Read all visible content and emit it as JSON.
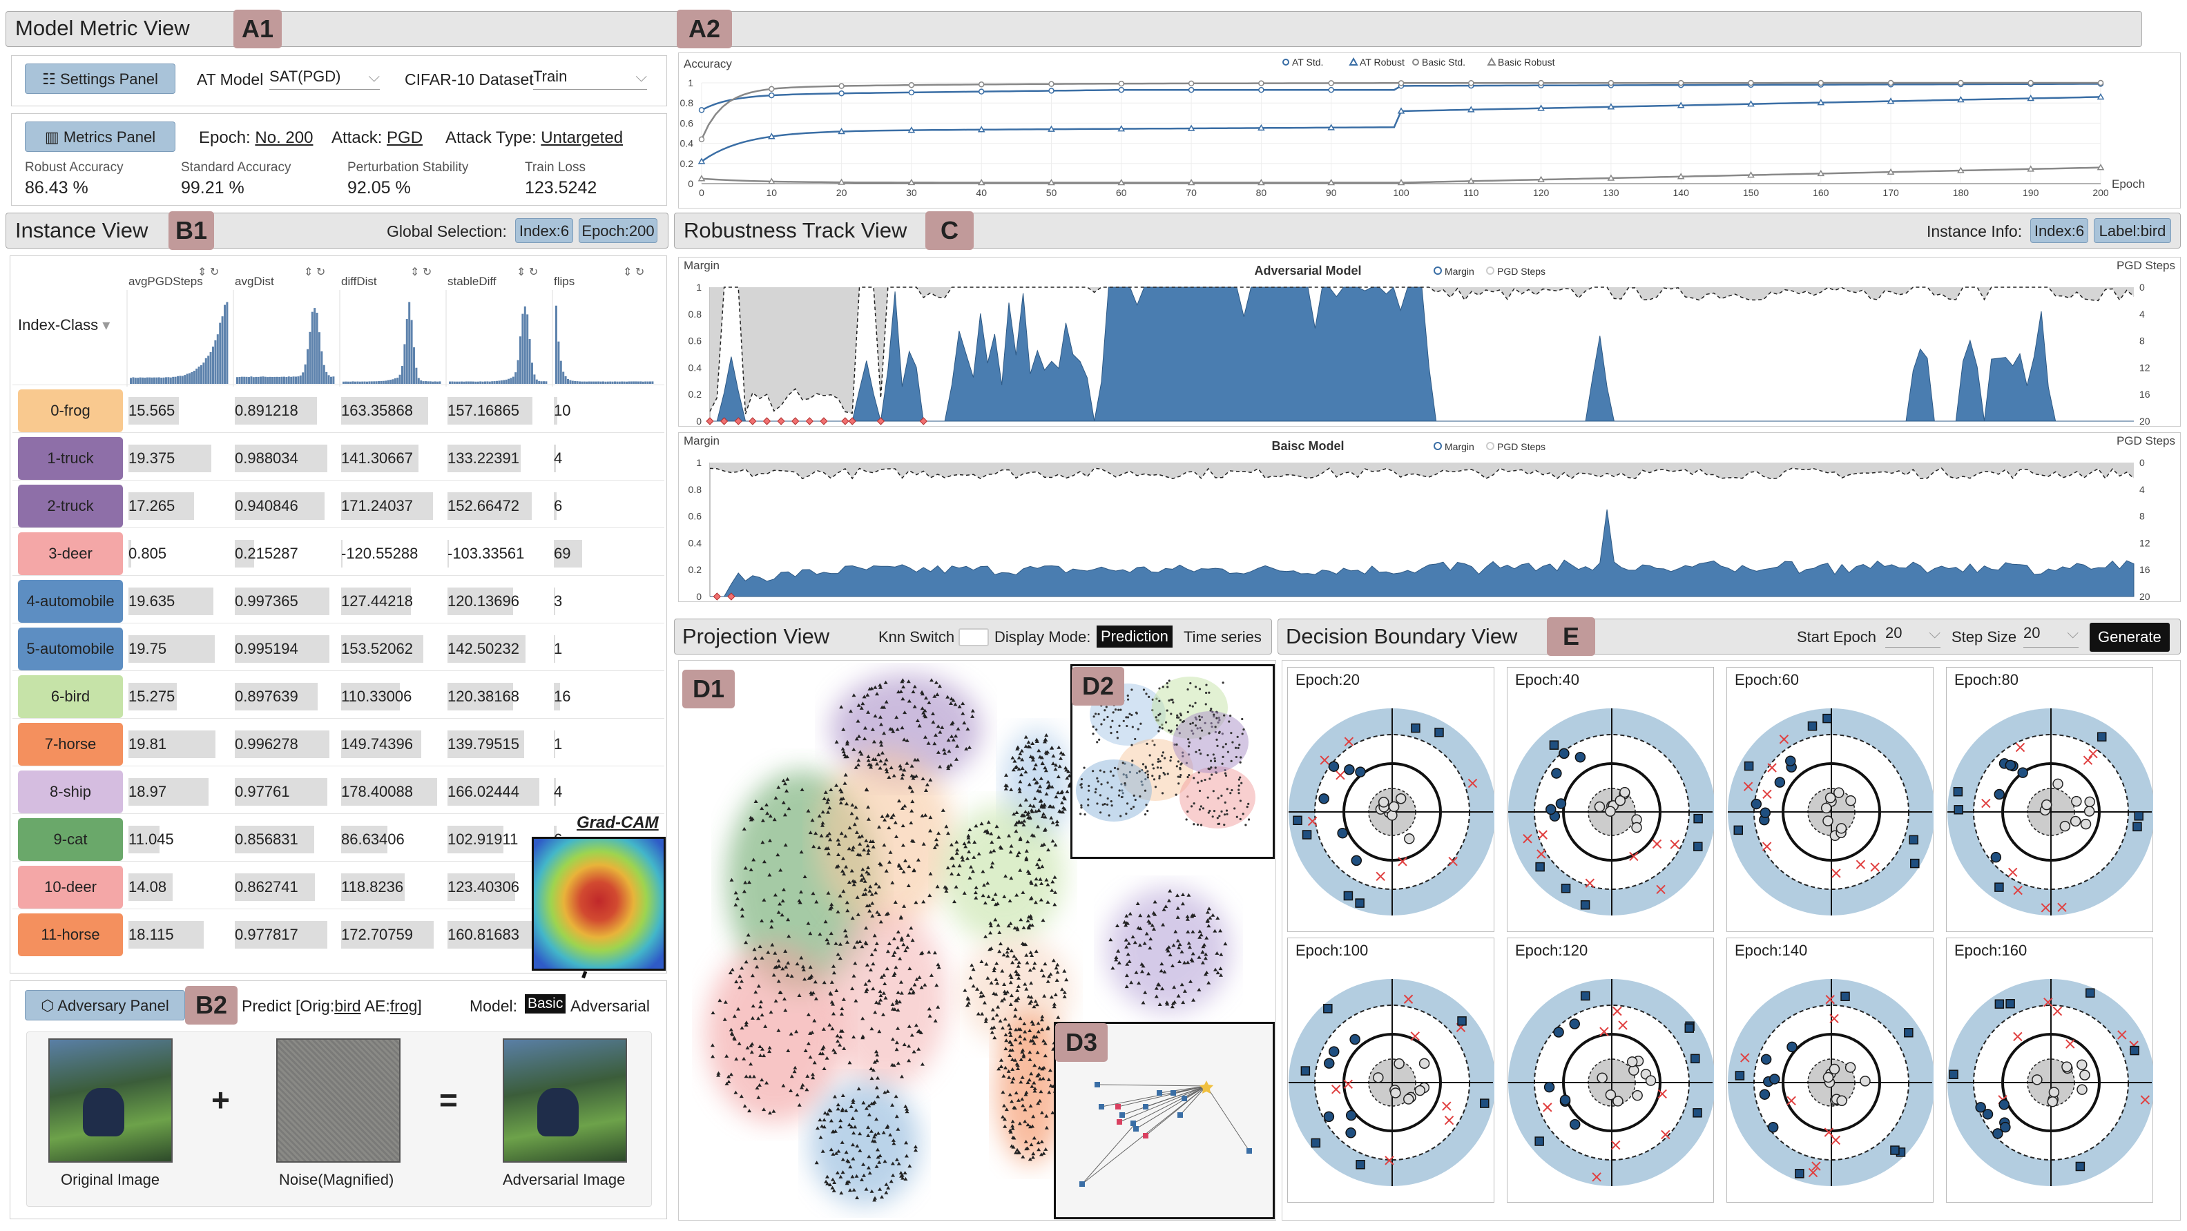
{
  "badges": {
    "a1": "A1",
    "a2": "A2",
    "b1": "B1",
    "b2": "B2",
    "c": "C",
    "d1": "D1",
    "d2": "D2",
    "d3": "D3",
    "e": "E"
  },
  "model_metric": {
    "title": "Model Metric View",
    "settings_btn": "Settings Panel",
    "at_model_label": "AT Model",
    "at_model_value": "SAT(PGD)",
    "dataset_label": "CIFAR-10 Dataset",
    "dataset_value": "Train",
    "metrics_btn": "Metrics Panel",
    "epoch_label": "Epoch:",
    "epoch_value": "No. 200",
    "attack_label": "Attack:",
    "attack_value": "PGD",
    "attack_type_label": "Attack Type:",
    "attack_type_value": "Untargeted",
    "metrics": [
      {
        "label": "Robust Accuracy",
        "value": "86.43  %"
      },
      {
        "label": "Standard Accuracy",
        "value": "99.21  %"
      },
      {
        "label": "Perturbation Stability",
        "value": "92.05  %"
      },
      {
        "label": "Train Loss",
        "value": "123.5242"
      }
    ]
  },
  "accuracy_chart": {
    "ylabel": "Accuracy",
    "xlabel": "Epoch",
    "legend": [
      "AT Std.",
      "AT Robust",
      "Basic Std.",
      "Basic Robust"
    ],
    "yticks": [
      "0",
      "0.2",
      "0.4",
      "0.6",
      "0.8",
      "1"
    ],
    "xticks": [
      "0",
      "10",
      "20",
      "30",
      "40",
      "50",
      "60",
      "70",
      "80",
      "90",
      "100",
      "110",
      "120",
      "130",
      "140",
      "150",
      "160",
      "170",
      "180",
      "190",
      "200"
    ]
  },
  "instance": {
    "title": "Instance View",
    "global_label": "Global Selection:",
    "index_btn": "Index:6",
    "epoch_btn": "Epoch:200",
    "index_class": "Index-Class",
    "columns": [
      "avgPGDSteps",
      "avgDist",
      "diffDist",
      "stableDiff",
      "flips"
    ],
    "rows": [
      {
        "cls": "0-frog",
        "color": "#f9c98f",
        "v": [
          "15.565",
          "0.891218",
          "163.35868",
          "157.16865",
          "10"
        ],
        "f": [
          0.52,
          0.85,
          0.9,
          0.88,
          0.05
        ]
      },
      {
        "cls": "1-truck",
        "color": "#8e6fa8",
        "v": [
          "19.375",
          "0.988034",
          "141.30667",
          "133.22391",
          "4"
        ],
        "f": [
          0.86,
          0.96,
          0.8,
          0.76,
          0.03
        ]
      },
      {
        "cls": "2-truck",
        "color": "#8e6fa8",
        "v": [
          "17.265",
          "0.940846",
          "171.24037",
          "152.66472",
          "6"
        ],
        "f": [
          0.68,
          0.93,
          0.95,
          0.87,
          0.04
        ]
      },
      {
        "cls": "3-deer",
        "color": "#f4a7a7",
        "v": [
          "0.805",
          "0.215287",
          "-120.55288",
          "-103.33561",
          "69"
        ],
        "f": [
          0.03,
          0.2,
          0.0,
          0.0,
          0.45
        ]
      },
      {
        "cls": "4-automobile",
        "color": "#5d8ec2",
        "v": [
          "19.635",
          "0.997365",
          "127.44218",
          "120.13696",
          "3"
        ],
        "f": [
          0.88,
          0.98,
          0.72,
          0.68,
          0.02
        ]
      },
      {
        "cls": "5-automobile",
        "color": "#5d8ec2",
        "v": [
          "19.75",
          "0.995194",
          "153.52062",
          "142.50232",
          "1"
        ],
        "f": [
          0.89,
          0.98,
          0.85,
          0.81,
          0.01
        ]
      },
      {
        "cls": "6-bird",
        "color": "#c6e3a8",
        "v": [
          "15.275",
          "0.897639",
          "110.33006",
          "120.38168",
          "16"
        ],
        "f": [
          0.5,
          0.86,
          0.61,
          0.68,
          0.1
        ]
      },
      {
        "cls": "7-horse",
        "color": "#f4905e",
        "v": [
          "19.81",
          "0.996278",
          "149.74396",
          "139.79515",
          "1"
        ],
        "f": [
          0.9,
          0.98,
          0.83,
          0.79,
          0.01
        ]
      },
      {
        "cls": "8-ship",
        "color": "#d5bde0",
        "v": [
          "18.97",
          "0.97761",
          "178.40088",
          "166.02444",
          "4"
        ],
        "f": [
          0.83,
          0.96,
          0.99,
          0.95,
          0.03
        ]
      },
      {
        "cls": "9-cat",
        "color": "#6aa86a",
        "v": [
          "11.045",
          "0.856831",
          "86.63406",
          "102.91911",
          "6"
        ],
        "f": [
          0.32,
          0.82,
          0.48,
          0.58,
          0.04
        ]
      },
      {
        "cls": "10-deer",
        "color": "#f4a7a7",
        "v": [
          "14.08",
          "0.862741",
          "118.8236",
          "123.40306",
          "4"
        ],
        "f": [
          0.46,
          0.83,
          0.66,
          0.7,
          0.03
        ]
      },
      {
        "cls": "11-horse",
        "color": "#f4905e",
        "v": [
          "18.115",
          "0.977817",
          "172.70759",
          "160.81683",
          "1"
        ],
        "f": [
          0.78,
          0.96,
          0.96,
          0.92,
          0.01
        ]
      }
    ]
  },
  "gradcam_label": "Grad-CAM",
  "adversary": {
    "btn": "Adversary Panel",
    "predict": "Predict [Orig:",
    "orig": "bird",
    "ae_label": " AE:",
    "ae": "frog",
    "close": "]",
    "model_label": "Model:",
    "model_basic": "Basic",
    "model_adv": "Adversarial",
    "plus": "+",
    "equals": "=",
    "img1": "Original Image",
    "img2": "Noise(Magnified)",
    "img3": "Adversarial Image"
  },
  "robustness": {
    "title": "Robustness Track View",
    "info_label": "Instance Info:",
    "index_btn": "Index:6",
    "label_btn": "Label:bird",
    "top": {
      "name": "Adversarial Model",
      "ylabel": "Margin",
      "ylabel_r": "PGD Steps",
      "legend": [
        "Margin",
        "PGD Steps"
      ]
    },
    "bottom": {
      "name": "Baisc Model",
      "ylabel": "Margin",
      "ylabel_r": "PGD Steps",
      "legend": [
        "Margin",
        "PGD Steps"
      ]
    },
    "yticks": [
      "0",
      "0.2",
      "0.4",
      "0.6",
      "0.8",
      "1"
    ],
    "rticks": [
      "20",
      "16",
      "12",
      "8",
      "4",
      "0"
    ],
    "xticks": [
      "0",
      "10",
      "20",
      "30",
      "40",
      "50",
      "60",
      "70",
      "80",
      "90",
      "100",
      "110",
      "120",
      "130",
      "140",
      "150",
      "160",
      "170",
      "180",
      "190",
      "200"
    ]
  },
  "projection": {
    "title": "Projection View",
    "knn": "Knn Switch",
    "display": "Display Mode:",
    "pred": "Prediction",
    "ts": "Time series"
  },
  "decision": {
    "title": "Decision Boundary View",
    "start_label": "Start Epoch",
    "start_value": "20",
    "step_label": "Step Size",
    "step_value": "20",
    "generate": "Generate",
    "epochs": [
      "Epoch:20",
      "Epoch:40",
      "Epoch:60",
      "Epoch:80",
      "Epoch:100",
      "Epoch:120",
      "Epoch:140",
      "Epoch:160"
    ]
  },
  "colors": {
    "blue": "#3a6ea5",
    "panel": "#e6e6e6",
    "badge": "#c19a9a",
    "boundary": "#b3cde0"
  }
}
